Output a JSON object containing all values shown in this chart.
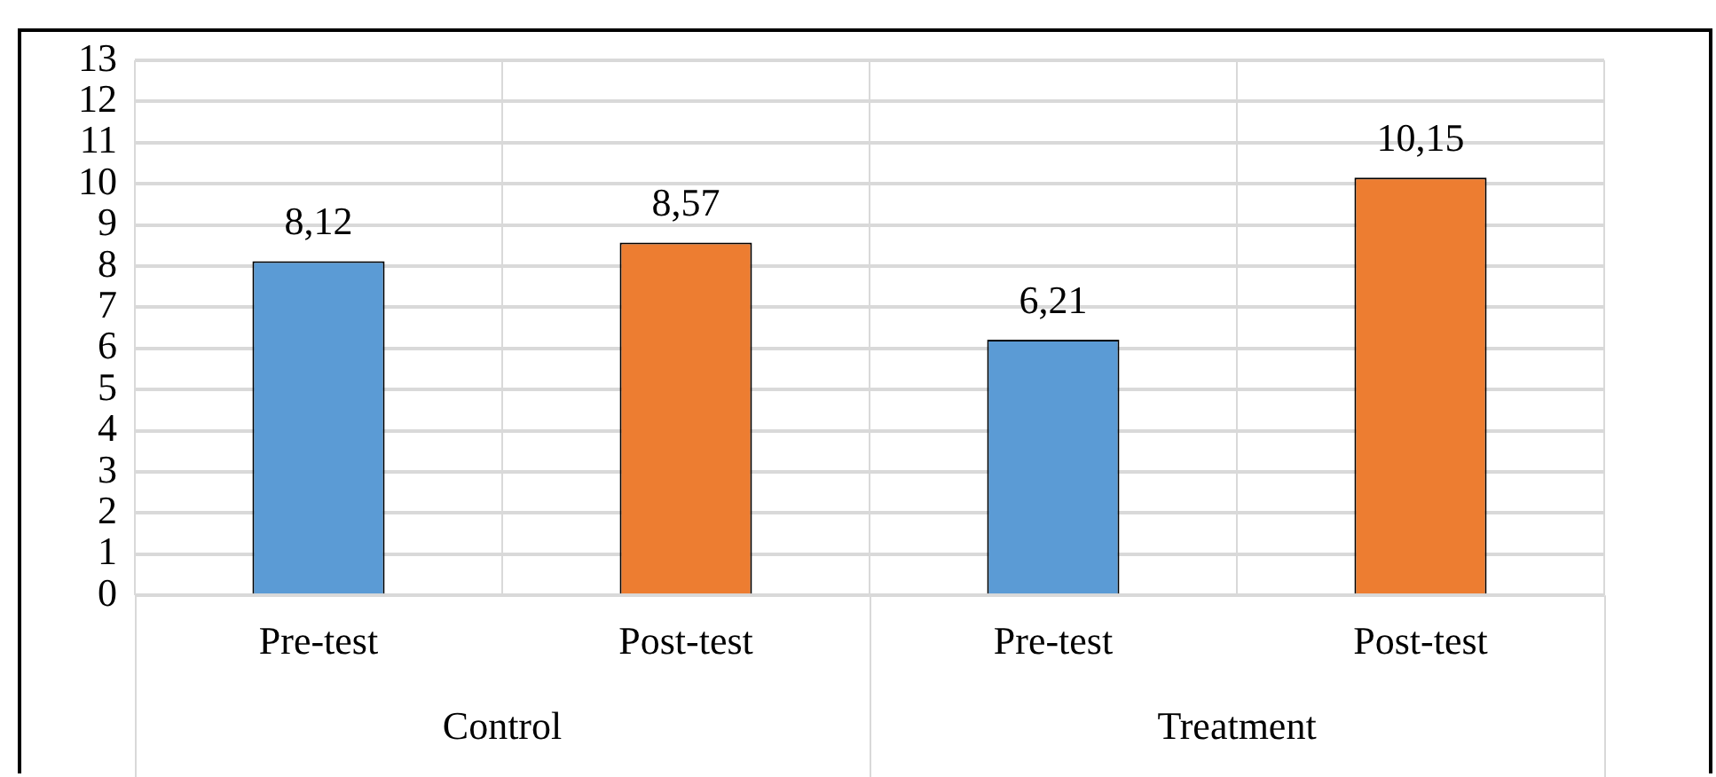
{
  "chart_data": {
    "type": "bar",
    "categories": [
      "Pre-test",
      "Post-test",
      "Pre-test",
      "Post-test"
    ],
    "values": [
      8.12,
      8.57,
      6.21,
      10.15
    ],
    "colors": [
      "#5b9bd5",
      "#ed7d31",
      "#5b9bd5",
      "#ed7d31"
    ],
    "value_labels": [
      "8,12",
      "8,57",
      "6,21",
      "10,15"
    ],
    "annotations": [
      "Control",
      "Treatment"
    ],
    "ylim": [
      0,
      13
    ],
    "yticks": [
      0,
      1,
      2,
      3,
      4,
      5,
      6,
      7,
      8,
      9,
      10,
      11,
      12,
      13
    ],
    "grid": true,
    "legend": false
  }
}
